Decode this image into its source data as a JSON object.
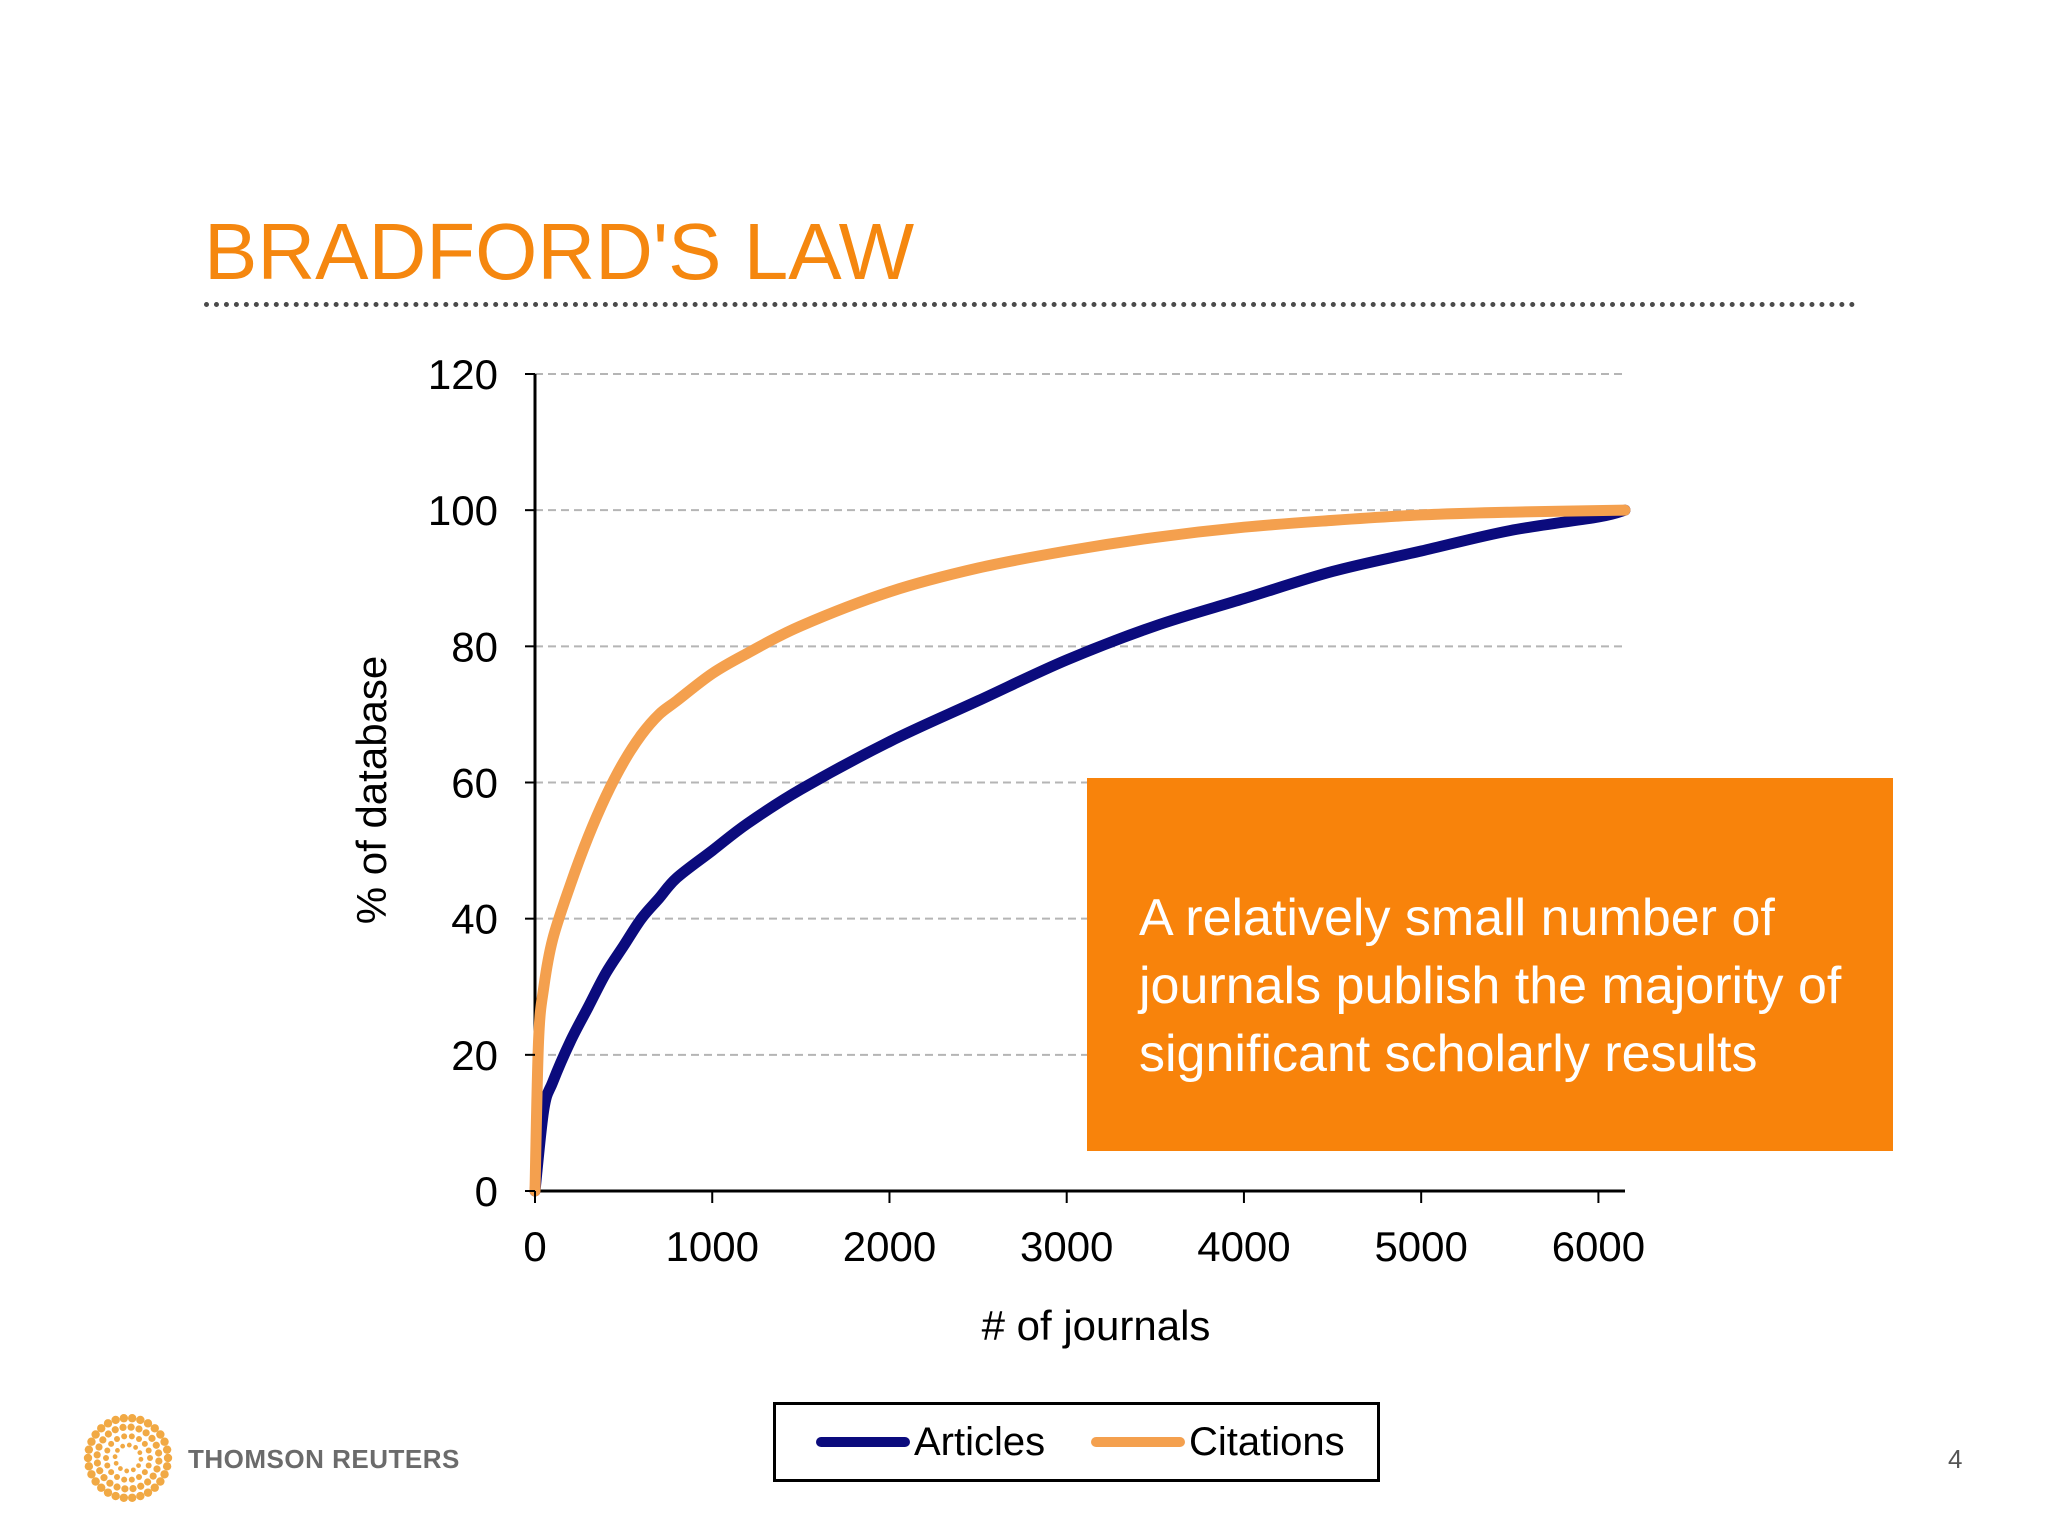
{
  "slide": {
    "title": "BRADFORD'S LAW",
    "page_number": "4",
    "logo_text": "THOMSON REUTERS",
    "callout_text": "A relatively small number of journals publish the majority of significant scholarly results",
    "colors": {
      "title": "#F5870F",
      "callout_bg": "#F8830B",
      "callout_text": "#FFFFFF",
      "logo_dots": "#F0A030"
    }
  },
  "chart_data": {
    "type": "line",
    "xlabel": "# of journals",
    "ylabel": "% of database",
    "xlim": [
      0,
      6150
    ],
    "ylim": [
      0,
      120
    ],
    "x_ticks": [
      0,
      1000,
      2000,
      3000,
      4000,
      5000,
      6000
    ],
    "y_ticks": [
      0,
      20,
      40,
      60,
      80,
      100,
      120
    ],
    "grid": "horizontal dashed",
    "legend_position": "bottom",
    "series": [
      {
        "name": "Articles",
        "color": "#0B0B7D",
        "points": [
          [
            0,
            0
          ],
          [
            50,
            12
          ],
          [
            100,
            16
          ],
          [
            200,
            22
          ],
          [
            300,
            27
          ],
          [
            400,
            32
          ],
          [
            500,
            36
          ],
          [
            600,
            40
          ],
          [
            700,
            43
          ],
          [
            800,
            46
          ],
          [
            1000,
            50
          ],
          [
            1200,
            54
          ],
          [
            1500,
            59
          ],
          [
            2000,
            66
          ],
          [
            2500,
            72
          ],
          [
            3000,
            78
          ],
          [
            3500,
            83
          ],
          [
            4000,
            87
          ],
          [
            4500,
            91
          ],
          [
            5000,
            94
          ],
          [
            5500,
            97
          ],
          [
            6000,
            99
          ],
          [
            6150,
            100
          ]
        ]
      },
      {
        "name": "Citations",
        "color": "#F4A04E",
        "points": [
          [
            0,
            0
          ],
          [
            20,
            22
          ],
          [
            50,
            30
          ],
          [
            100,
            37
          ],
          [
            200,
            45
          ],
          [
            300,
            52
          ],
          [
            400,
            58
          ],
          [
            500,
            63
          ],
          [
            600,
            67
          ],
          [
            700,
            70
          ],
          [
            800,
            72
          ],
          [
            1000,
            76
          ],
          [
            1200,
            79
          ],
          [
            1500,
            83
          ],
          [
            2000,
            88
          ],
          [
            2500,
            91.5
          ],
          [
            3000,
            94
          ],
          [
            3500,
            96
          ],
          [
            4000,
            97.5
          ],
          [
            4500,
            98.5
          ],
          [
            5000,
            99.3
          ],
          [
            5500,
            99.7
          ],
          [
            6150,
            100
          ]
        ]
      }
    ]
  }
}
